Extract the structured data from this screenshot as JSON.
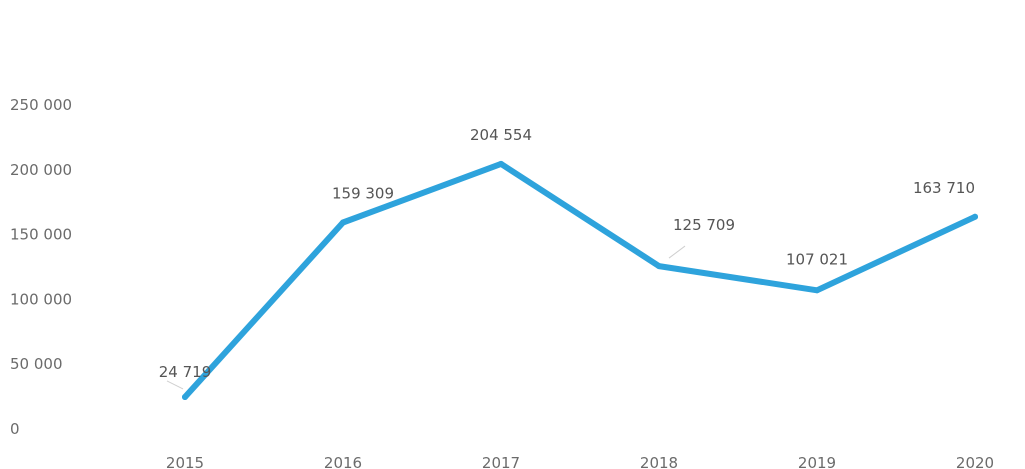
{
  "chart_data": {
    "type": "line",
    "title": "",
    "xlabel": "",
    "ylabel": "",
    "categories": [
      "2015",
      "2016",
      "2017",
      "2018",
      "2019",
      "2020"
    ],
    "series": [
      {
        "values": [
          24719,
          159309,
          204554,
          125709,
          107021,
          163710
        ],
        "color": "#2ea3dc"
      }
    ],
    "data_labels": [
      "24 719",
      "159 309",
      "204 554",
      "125 709",
      "107 021",
      "163 710"
    ],
    "ylim": [
      0,
      250000
    ],
    "yticks": [
      0,
      50000,
      100000,
      150000,
      200000,
      250000
    ],
    "ytick_labels": [
      "0",
      "50 000",
      "100 000",
      "150 000",
      "200 000",
      "250 000"
    ],
    "grid": false,
    "legend": "none"
  }
}
